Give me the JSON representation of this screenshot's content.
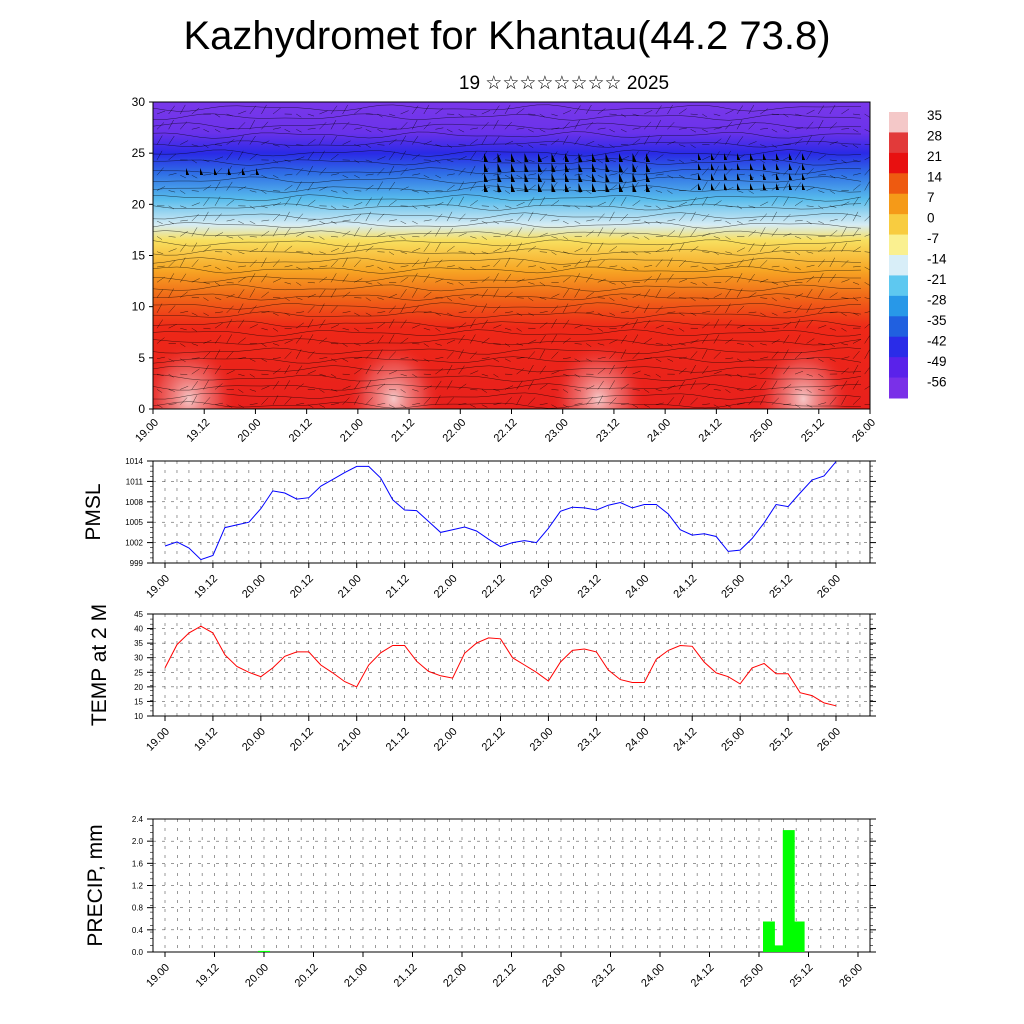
{
  "title": "Kazhydromet for Khantau(44.2 73.8)",
  "subtitle": "19 ☆☆☆☆☆☆☆☆ 2025",
  "time_labels": [
    "19.00",
    "19.12",
    "20.00",
    "20.12",
    "21.00",
    "21.12",
    "22.00",
    "22.12",
    "23.00",
    "23.12",
    "24.00",
    "24.12",
    "25.00",
    "25.12",
    "26.00"
  ],
  "chart_data": [
    {
      "type": "heatmap",
      "ylim": [
        0,
        30
      ],
      "y_ticks": [
        "0",
        "5",
        "10",
        "15",
        "20",
        "25",
        "30"
      ],
      "colorbar": {
        "labels": [
          "35",
          "28",
          "21",
          "14",
          "7",
          "0",
          "-7",
          "-14",
          "-21",
          "-28",
          "-35",
          "-42",
          "-49",
          "-56"
        ],
        "colors": [
          "#f4c8c8",
          "#e23a3a",
          "#e81010",
          "#ee5a10",
          "#f59a18",
          "#f8cc40",
          "#faf090",
          "#d8eef8",
          "#5ec8f0",
          "#2898e8",
          "#2060e0",
          "#2a2ce8",
          "#5a22ea",
          "#7a30e8"
        ]
      },
      "levels": [
        {
          "y": 0,
          "color": "#e8201c"
        },
        {
          "y": 8,
          "color": "#ee2818"
        },
        {
          "y": 11,
          "color": "#f06818"
        },
        {
          "y": 13.5,
          "color": "#f7a524"
        },
        {
          "y": 16.5,
          "color": "#f8e060"
        },
        {
          "y": 18,
          "color": "#d6ecf4"
        },
        {
          "y": 20.5,
          "color": "#58bcec"
        },
        {
          "y": 23,
          "color": "#2f6fe6"
        },
        {
          "y": 25,
          "color": "#2a2ae6"
        },
        {
          "y": 27,
          "color": "#6a32ea"
        },
        {
          "y": 30,
          "color": "#7a38ea"
        }
      ]
    },
    {
      "type": "line",
      "ylabel": "PMSL",
      "ylim": [
        999,
        1014
      ],
      "y_ticks": [
        "999",
        "1002",
        "1005",
        "1008",
        "1011",
        "1014"
      ],
      "color": "#0000ff",
      "values": [
        1001.5,
        1002.1,
        1001.2,
        999.5,
        1000.1,
        1004.2,
        1004.6,
        1005,
        1007,
        1009.6,
        1009.3,
        1008.4,
        1008.6,
        1010.3,
        1011.3,
        1012.3,
        1013.2,
        1013.2,
        1011.5,
        1008.3,
        1006.8,
        1006.7,
        1005.1,
        1003.5,
        1003.9,
        1004.3,
        1003.7,
        1002.5,
        1001.4,
        1002,
        1002.3,
        1002,
        1004.1,
        1006.6,
        1007.2,
        1007.1,
        1006.8,
        1007.5,
        1007.9,
        1007.1,
        1007.6,
        1007.6,
        1006.2,
        1003.9,
        1003.1,
        1003.3,
        1002.9,
        1000.7,
        1000.9,
        1002.6,
        1004.9,
        1007.6,
        1007.3,
        1009.3,
        1011.2,
        1011.8,
        1013.9
      ]
    },
    {
      "type": "line",
      "ylabel": "TEMP at 2 M",
      "ylim": [
        10,
        45
      ],
      "y_ticks": [
        "10",
        "15",
        "20",
        "25",
        "30",
        "35",
        "40",
        "45"
      ],
      "color": "#ff0000",
      "values": [
        26.5,
        34.5,
        38.5,
        40.8,
        38.5,
        31,
        27,
        25,
        23.5,
        26.5,
        30.5,
        32,
        32,
        27.5,
        24.8,
        21.8,
        20,
        27.5,
        31.7,
        34.2,
        34.2,
        28.8,
        25.3,
        23.8,
        23,
        31.5,
        35,
        36.8,
        36.5,
        30,
        27.5,
        25,
        22,
        28.5,
        32.5,
        33,
        32,
        25.8,
        22.5,
        21.5,
        21.5,
        29.5,
        32.5,
        34.2,
        33.9,
        28.5,
        24.8,
        23.5,
        21,
        26.5,
        28,
        24.5,
        24.5,
        18,
        17,
        14.5,
        13.5
      ]
    },
    {
      "type": "bar",
      "ylabel": "PRECIP, mm",
      "ylim": [
        0,
        2.4
      ],
      "y_ticks": [
        "0.0",
        "0.4",
        "0.8",
        "1.2",
        "1.6",
        "2.0",
        "2.4"
      ],
      "color": "#00ff00",
      "bars": [
        {
          "x": 20.0,
          "value": 0.02
        },
        {
          "x": 25.1,
          "value": 0.55
        },
        {
          "x": 25.2,
          "value": 0.12
        },
        {
          "x": 25.3,
          "value": 2.2
        },
        {
          "x": 25.4,
          "value": 0.55
        }
      ]
    }
  ]
}
